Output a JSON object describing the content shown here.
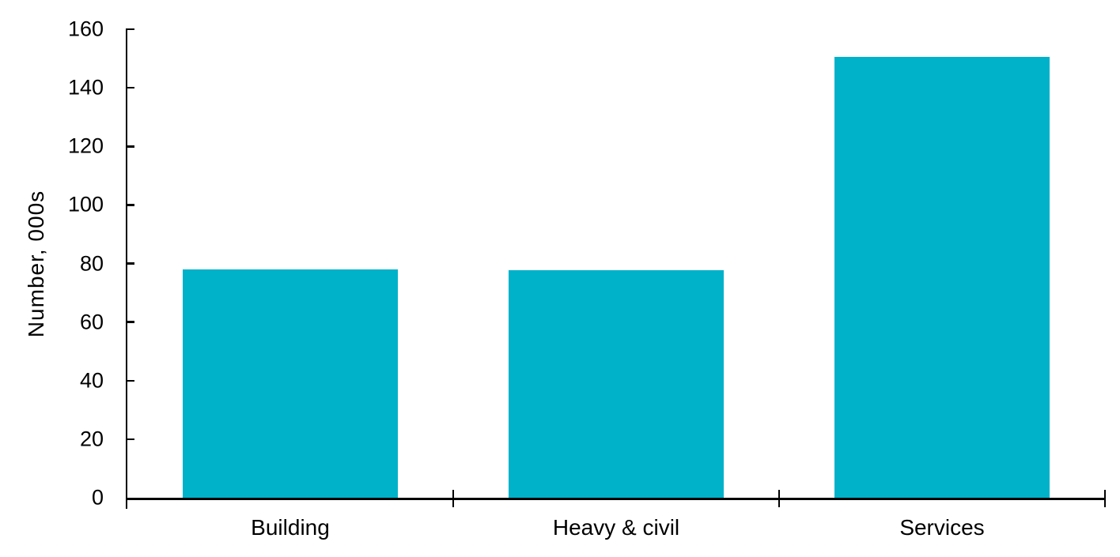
{
  "chart_data": {
    "type": "bar",
    "categories": [
      "Building",
      "Heavy & civil",
      "Services"
    ],
    "values": [
      78.1,
      77.8,
      150.5
    ],
    "title": "",
    "xlabel": "",
    "ylabel": "Number, 000s",
    "ylim": [
      0,
      160
    ],
    "yticks": [
      0,
      20,
      40,
      60,
      80,
      100,
      120,
      140,
      160
    ],
    "grid": false,
    "legend": false,
    "colors": {
      "bar": "#00b1ca",
      "axis": "#000000",
      "text": "#000000",
      "background": "#ffffff"
    }
  }
}
